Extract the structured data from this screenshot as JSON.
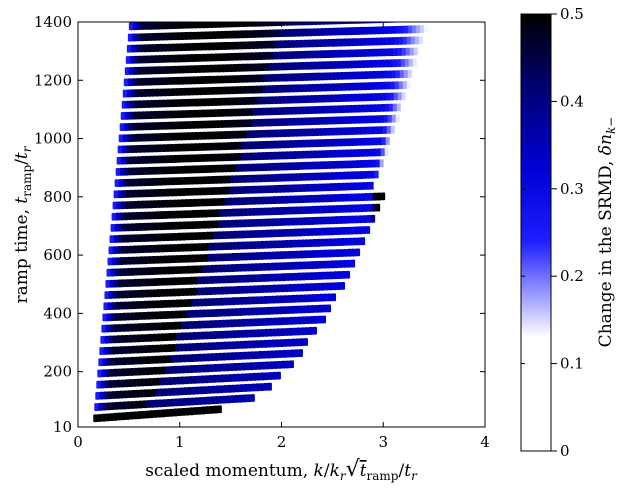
{
  "chart_data": {
    "type": "heatmap",
    "title": "",
    "xlabel": "scaled momentum, k/k_r √(t_ramp/t_r)",
    "xlabel_parts": {
      "main": "scaled momentum, ",
      "k": "k",
      "over": "/",
      "kr": "k",
      "r_sub": "r",
      "tramp_t": "t",
      "tramp_sub": "ramp",
      "slash": "/",
      "tr_t": "t",
      "tr_sub": "r"
    },
    "ylabel": "ramp time, t_ramp/t_r",
    "ylabel_parts": {
      "main": "ramp time, ",
      "t": "t",
      "sub": "ramp",
      "slash": "/",
      "t2": "t",
      "sub2": "r"
    },
    "xlim": [
      0,
      4
    ],
    "ylim": [
      10,
      1400
    ],
    "xticks": [
      0,
      1,
      2,
      3,
      4
    ],
    "xtick_labels": [
      "0",
      "1",
      "2",
      "3",
      "4"
    ],
    "yticks": [
      10,
      200,
      400,
      600,
      800,
      1000,
      1200,
      1400
    ],
    "ytick_labels": [
      "10",
      "200",
      "400",
      "600",
      "800",
      "1000",
      "1200",
      "1400"
    ],
    "colorbar": {
      "label": "Change in the SRMD, δn_k−",
      "label_parts": {
        "main": "Change in the SRMD, ",
        "dn": "δn",
        "sub": "k−"
      },
      "range": [
        0,
        0.5
      ],
      "ticks": [
        0,
        0.1,
        0.2,
        0.3,
        0.4,
        0.5
      ],
      "tick_labels": [
        "0",
        "0.1",
        "0.2",
        "0.3",
        "0.4",
        "0.5"
      ],
      "colormap": [
        {
          "value": 0.0,
          "color": "#ffffff"
        },
        {
          "value": 0.13,
          "color": "#ffffff"
        },
        {
          "value": 0.24,
          "color": "#1e1eff"
        },
        {
          "value": 0.32,
          "color": "#0000d8"
        },
        {
          "value": 0.42,
          "color": "#00006e"
        },
        {
          "value": 0.5,
          "color": "#000000"
        }
      ]
    },
    "fringes": {
      "count": 36,
      "first_ramp_time": 40,
      "last_ramp_time": 1385,
      "shift_per_ramp_time": 0.00041,
      "center_start": 0.6,
      "bottom_band": {
        "ramp_time": 40,
        "x_range": [
          0.3,
          1.3
        ],
        "peak_value": 0.5
      },
      "upper_edge": {
        "ramp_time": 1385,
        "x_range": [
          0.4,
          3.4
        ]
      }
    }
  }
}
